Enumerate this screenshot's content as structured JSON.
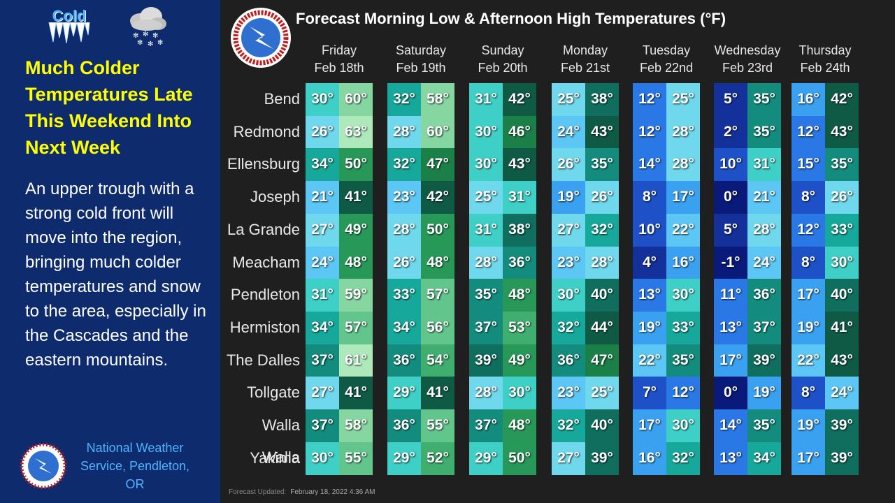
{
  "left_panel": {
    "cold_word": "Cold",
    "headline": "Much Colder Temperatures Late This Weekend Into Next Week",
    "body": "An upper trough with a strong cold front will move into the region, bringing much colder temperatures and snow to the area, especially in the Cascades and the eastern mountains.",
    "office": "National Weather Service, Pendleton, OR",
    "icons": [
      "icicles-icon",
      "snow-cloud-icon",
      "nws-logo-icon"
    ]
  },
  "chart_data": {
    "type": "table",
    "title": "Forecast Morning Low & Afternoon High Temperatures (°F)",
    "days": [
      {
        "day": "Friday",
        "date": "Feb 18th"
      },
      {
        "day": "Saturday",
        "date": "Feb 19th"
      },
      {
        "day": "Sunday",
        "date": "Feb 20th"
      },
      {
        "day": "Monday",
        "date": "Feb 21st"
      },
      {
        "day": "Tuesday",
        "date": "Feb 22nd"
      },
      {
        "day": "Wednesday",
        "date": "Feb 23rd"
      },
      {
        "day": "Thursday",
        "date": "Feb 24th"
      }
    ],
    "cities": [
      "Bend",
      "Redmond",
      "Ellensburg",
      "Joseph",
      "La Grande",
      "Meacham",
      "Pendleton",
      "Hermiston",
      "The Dalles",
      "Tollgate",
      "Walla Walla",
      "Yakima"
    ],
    "unit_symbol": "°",
    "temps": [
      [
        [
          30,
          60
        ],
        [
          32,
          58
        ],
        [
          31,
          42
        ],
        [
          25,
          38
        ],
        [
          12,
          25
        ],
        [
          5,
          35
        ],
        [
          16,
          42
        ]
      ],
      [
        [
          26,
          63
        ],
        [
          28,
          60
        ],
        [
          30,
          46
        ],
        [
          24,
          43
        ],
        [
          12,
          28
        ],
        [
          2,
          35
        ],
        [
          12,
          43
        ]
      ],
      [
        [
          34,
          50
        ],
        [
          32,
          47
        ],
        [
          30,
          43
        ],
        [
          26,
          35
        ],
        [
          14,
          28
        ],
        [
          10,
          31
        ],
        [
          15,
          35
        ]
      ],
      [
        [
          21,
          41
        ],
        [
          23,
          42
        ],
        [
          25,
          31
        ],
        [
          19,
          26
        ],
        [
          8,
          17
        ],
        [
          0,
          21
        ],
        [
          8,
          26
        ]
      ],
      [
        [
          27,
          49
        ],
        [
          28,
          50
        ],
        [
          31,
          38
        ],
        [
          27,
          32
        ],
        [
          10,
          22
        ],
        [
          5,
          28
        ],
        [
          12,
          33
        ]
      ],
      [
        [
          24,
          48
        ],
        [
          26,
          48
        ],
        [
          28,
          36
        ],
        [
          23,
          28
        ],
        [
          4,
          16
        ],
        [
          -1,
          24
        ],
        [
          8,
          30
        ]
      ],
      [
        [
          31,
          59
        ],
        [
          33,
          57
        ],
        [
          35,
          48
        ],
        [
          30,
          40
        ],
        [
          13,
          30
        ],
        [
          11,
          36
        ],
        [
          17,
          40
        ]
      ],
      [
        [
          34,
          57
        ],
        [
          34,
          56
        ],
        [
          37,
          53
        ],
        [
          32,
          44
        ],
        [
          19,
          33
        ],
        [
          13,
          37
        ],
        [
          19,
          41
        ]
      ],
      [
        [
          37,
          61
        ],
        [
          36,
          54
        ],
        [
          39,
          49
        ],
        [
          36,
          47
        ],
        [
          22,
          35
        ],
        [
          17,
          39
        ],
        [
          22,
          43
        ]
      ],
      [
        [
          27,
          41
        ],
        [
          29,
          41
        ],
        [
          28,
          30
        ],
        [
          23,
          25
        ],
        [
          7,
          12
        ],
        [
          0,
          19
        ],
        [
          8,
          24
        ]
      ],
      [
        [
          37,
          58
        ],
        [
          36,
          55
        ],
        [
          37,
          48
        ],
        [
          32,
          40
        ],
        [
          17,
          30
        ],
        [
          14,
          35
        ],
        [
          19,
          39
        ]
      ],
      [
        [
          30,
          55
        ],
        [
          29,
          52
        ],
        [
          29,
          50
        ],
        [
          27,
          39
        ],
        [
          16,
          32
        ],
        [
          13,
          34
        ],
        [
          17,
          39
        ]
      ]
    ],
    "color_scale": [
      {
        "max": 0,
        "color": "#0a1a7a"
      },
      {
        "max": 5,
        "color": "#14309a"
      },
      {
        "max": 10,
        "color": "#1e50c8"
      },
      {
        "max": 15,
        "color": "#2a78e6"
      },
      {
        "max": 20,
        "color": "#3aa0f0"
      },
      {
        "max": 24,
        "color": "#5cc6f4"
      },
      {
        "max": 28,
        "color": "#6fd8ec"
      },
      {
        "max": 31,
        "color": "#3ecfc6"
      },
      {
        "max": 34,
        "color": "#16a89a"
      },
      {
        "max": 37,
        "color": "#138c7e"
      },
      {
        "max": 40,
        "color": "#0f6e5e"
      },
      {
        "max": 44,
        "color": "#0f5a45"
      },
      {
        "max": 47,
        "color": "#1b8048"
      },
      {
        "max": 50,
        "color": "#279858"
      },
      {
        "max": 54,
        "color": "#3fae6e"
      },
      {
        "max": 57,
        "color": "#62c58c"
      },
      {
        "max": 60,
        "color": "#86d6a2"
      },
      {
        "max": 99,
        "color": "#ade9bb"
      }
    ],
    "updated_label": "Forecast Updated:",
    "updated_value": "February 18, 2022 4:36 AM"
  }
}
